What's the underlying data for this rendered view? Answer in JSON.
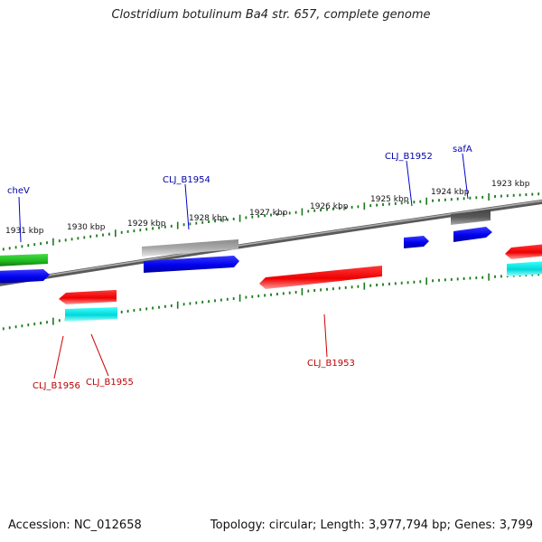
{
  "title": "Clostridium botulinum Ba4 str. 657, complete genome",
  "footer": {
    "accession": "Accession: NC_012658",
    "summary": "Topology: circular; Length: 3,977,794 bp; Genes: 3,799"
  },
  "scale": {
    "unit": "kbp",
    "ticks": [
      "1923 kbp",
      "1924 kbp",
      "1925 kbp",
      "1926 kbp",
      "1927 kbp",
      "1928 kbp",
      "1929 kbp",
      "1930 kbp",
      "1931 kbp"
    ]
  },
  "colors": {
    "backbone": "#808080",
    "tick": "#1a7a1a",
    "forward_label": "#0000aa",
    "reverse_label": "#bb0000",
    "gene_blue": "#0000ee",
    "gene_red": "#ee0000",
    "gene_cyan": "#00d8d8",
    "gene_green": "#22bb22",
    "gene_grey": "#aaaaaa",
    "gene_darkgrey": "#555555"
  },
  "genes": [
    {
      "label": "cheV",
      "strand": "forward"
    },
    {
      "label": "CLJ_B1954",
      "strand": "forward"
    },
    {
      "label": "CLJ_B1952",
      "strand": "forward"
    },
    {
      "label": "safA",
      "strand": "forward"
    },
    {
      "label": "CLJ_B1956",
      "strand": "reverse"
    },
    {
      "label": "CLJ_B1955",
      "strand": "reverse"
    },
    {
      "label": "CLJ_B1953",
      "strand": "reverse"
    }
  ]
}
